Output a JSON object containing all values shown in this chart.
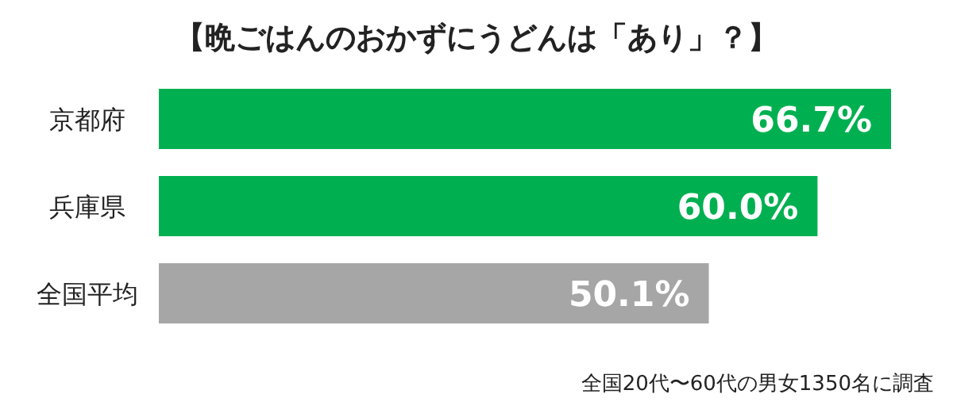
{
  "chart_data": {
    "type": "bar",
    "orientation": "horizontal",
    "title": "【晩ごはんのおかずにうどんは「あり」？】",
    "categories": [
      "京都府",
      "兵庫県",
      "全国平均"
    ],
    "values": [
      66.7,
      60.0,
      50.1
    ],
    "colors": [
      "#00b050",
      "#00b050",
      "#a6a6a6"
    ],
    "value_labels": [
      "66.7%",
      "60.0%",
      "50.1%"
    ],
    "annotations": [
      "全国20代〜60代の男女1350名に調査"
    ]
  }
}
